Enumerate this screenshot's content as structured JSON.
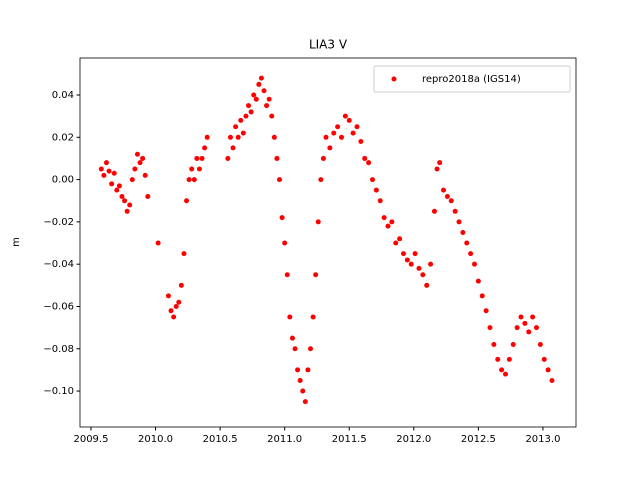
{
  "chart_data": {
    "type": "scatter",
    "title": "LIA3 V",
    "ylabel": "m",
    "legend": "upper right",
    "xlim": [
      2009.415,
      2013.256
    ],
    "ylim": [
      -0.117,
      0.0575
    ],
    "xticks": [
      {
        "value": 2009.5,
        "label": "2009.5"
      },
      {
        "value": 2010.0,
        "label": "2010.0"
      },
      {
        "value": 2010.5,
        "label": "2010.5"
      },
      {
        "value": 2011.0,
        "label": "2011.0"
      },
      {
        "value": 2011.5,
        "label": "2011.5"
      },
      {
        "value": 2012.0,
        "label": "2012.0"
      },
      {
        "value": 2012.5,
        "label": "2012.5"
      },
      {
        "value": 2013.0,
        "label": "2013.0"
      }
    ],
    "yticks": [
      {
        "value": -0.1,
        "label": "−0.10"
      },
      {
        "value": -0.08,
        "label": "−0.08"
      },
      {
        "value": -0.06,
        "label": "−0.06"
      },
      {
        "value": -0.04,
        "label": "−0.04"
      },
      {
        "value": -0.02,
        "label": "−0.02"
      },
      {
        "value": 0,
        "label": "0.00"
      },
      {
        "value": 0.02,
        "label": "0.02"
      },
      {
        "value": 0.04,
        "label": "0.04"
      }
    ],
    "series": [
      {
        "name": "repro2018a (IGS14)",
        "color": "#ff0000",
        "x": [
          2009.58,
          2009.6,
          2009.62,
          2009.64,
          2009.66,
          2009.68,
          2009.7,
          2009.72,
          2009.74,
          2009.76,
          2009.78,
          2009.8,
          2009.82,
          2009.84,
          2009.86,
          2009.88,
          2009.9,
          2009.92,
          2009.94,
          2010.02,
          2010.1,
          2010.12,
          2010.14,
          2010.16,
          2010.18,
          2010.2,
          2010.22,
          2010.24,
          2010.26,
          2010.28,
          2010.3,
          2010.32,
          2010.34,
          2010.36,
          2010.38,
          2010.4,
          2010.56,
          2010.58,
          2010.6,
          2010.62,
          2010.64,
          2010.66,
          2010.68,
          2010.7,
          2010.72,
          2010.74,
          2010.76,
          2010.78,
          2010.8,
          2010.82,
          2010.84,
          2010.86,
          2010.88,
          2010.9,
          2010.92,
          2010.94,
          2010.96,
          2010.98,
          2011.0,
          2011.02,
          2011.04,
          2011.06,
          2011.08,
          2011.1,
          2011.12,
          2011.14,
          2011.16,
          2011.18,
          2011.2,
          2011.22,
          2011.24,
          2011.26,
          2011.28,
          2011.3,
          2011.32,
          2011.35,
          2011.38,
          2011.41,
          2011.44,
          2011.47,
          2011.5,
          2011.53,
          2011.56,
          2011.59,
          2011.62,
          2011.65,
          2011.68,
          2011.71,
          2011.74,
          2011.77,
          2011.8,
          2011.83,
          2011.86,
          2011.89,
          2011.92,
          2011.95,
          2011.98,
          2012.01,
          2012.04,
          2012.07,
          2012.1,
          2012.13,
          2012.16,
          2012.18,
          2012.2,
          2012.23,
          2012.26,
          2012.29,
          2012.32,
          2012.35,
          2012.38,
          2012.41,
          2012.44,
          2012.47,
          2012.5,
          2012.53,
          2012.56,
          2012.59,
          2012.62,
          2012.65,
          2012.68,
          2012.71,
          2012.74,
          2012.77,
          2012.8,
          2012.83,
          2012.86,
          2012.89,
          2012.92,
          2012.95,
          2012.98,
          2013.01,
          2013.04,
          2013.07
        ],
        "values": [
          0.005,
          0.002,
          0.008,
          0.004,
          -0.002,
          0.003,
          -0.005,
          -0.003,
          -0.008,
          -0.01,
          -0.015,
          -0.012,
          0.0,
          0.005,
          0.012,
          0.008,
          0.01,
          0.002,
          -0.008,
          -0.03,
          -0.055,
          -0.062,
          -0.065,
          -0.06,
          -0.058,
          -0.05,
          -0.035,
          -0.01,
          0.0,
          0.005,
          0.0,
          0.01,
          0.005,
          0.01,
          0.015,
          0.02,
          0.01,
          0.02,
          0.015,
          0.025,
          0.02,
          0.028,
          0.022,
          0.03,
          0.035,
          0.032,
          0.04,
          0.038,
          0.045,
          0.048,
          0.042,
          0.035,
          0.038,
          0.03,
          0.02,
          0.01,
          0.0,
          -0.018,
          -0.03,
          -0.045,
          -0.065,
          -0.075,
          -0.08,
          -0.09,
          -0.095,
          -0.1,
          -0.105,
          -0.09,
          -0.08,
          -0.065,
          -0.045,
          -0.02,
          0.0,
          0.01,
          0.02,
          0.015,
          0.022,
          0.025,
          0.02,
          0.03,
          0.028,
          0.022,
          0.025,
          0.018,
          0.01,
          0.008,
          0.0,
          -0.005,
          -0.01,
          -0.018,
          -0.022,
          -0.02,
          -0.03,
          -0.028,
          -0.035,
          -0.038,
          -0.04,
          -0.035,
          -0.042,
          -0.045,
          -0.05,
          -0.04,
          -0.015,
          0.005,
          0.008,
          -0.005,
          -0.008,
          -0.01,
          -0.015,
          -0.02,
          -0.025,
          -0.03,
          -0.035,
          -0.04,
          -0.048,
          -0.055,
          -0.062,
          -0.07,
          -0.078,
          -0.085,
          -0.09,
          -0.092,
          -0.085,
          -0.078,
          -0.07,
          -0.065,
          -0.068,
          -0.072,
          -0.065,
          -0.07,
          -0.078,
          -0.085,
          -0.09,
          -0.095
        ]
      }
    ]
  }
}
